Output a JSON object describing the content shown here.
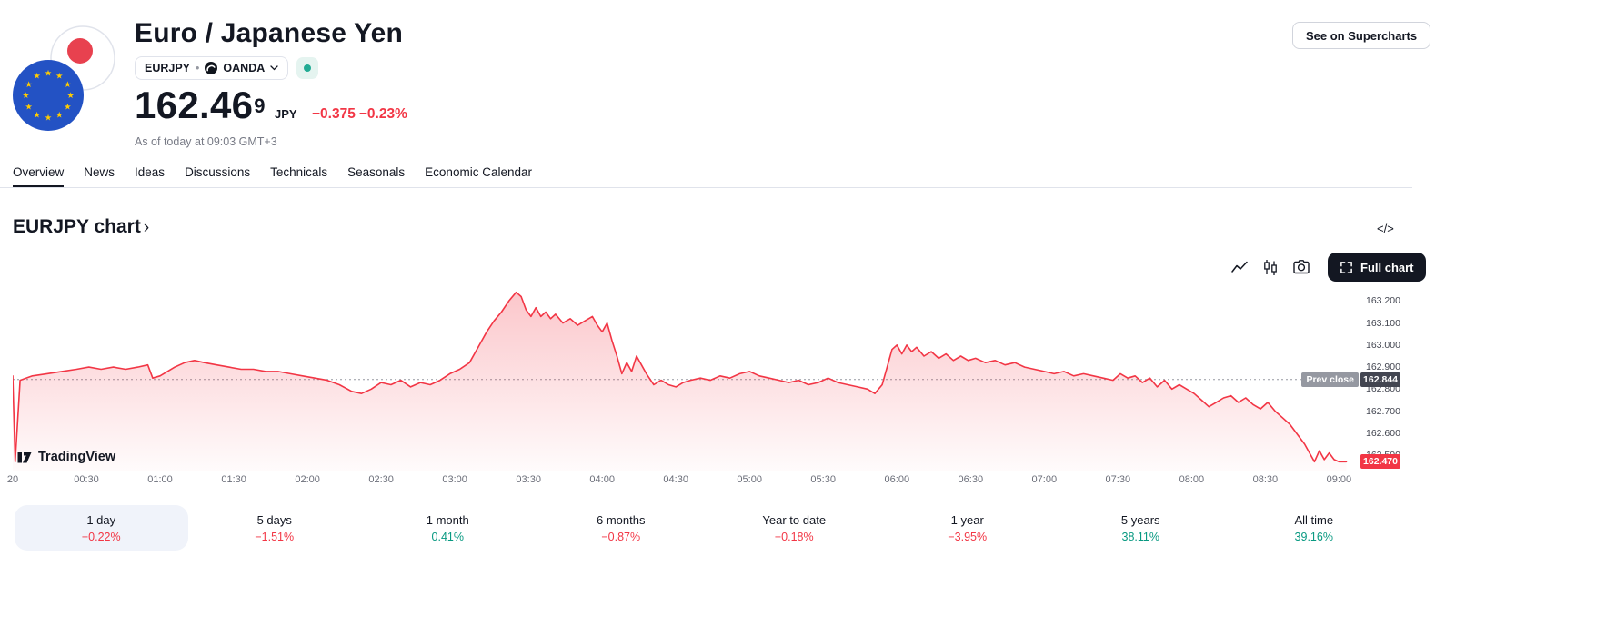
{
  "header": {
    "title": "Euro / Japanese Yen",
    "symbol": "EURJPY",
    "separator": "•",
    "exchange": "OANDA",
    "market_status": "open",
    "price": "162.46",
    "price_sup": "9",
    "currency": "JPY",
    "change_abs": "−0.375",
    "change_pct": "−0.23%",
    "as_of": "As of today at 09:03 GMT+3",
    "supercharts_button": "See on Supercharts"
  },
  "tabs": {
    "items": [
      {
        "label": "Overview",
        "active": true
      },
      {
        "label": "News",
        "active": false
      },
      {
        "label": "Ideas",
        "active": false
      },
      {
        "label": "Discussions",
        "active": false
      },
      {
        "label": "Technicals",
        "active": false
      },
      {
        "label": "Seasonals",
        "active": false
      },
      {
        "label": "Economic Calendar",
        "active": false
      }
    ]
  },
  "section": {
    "title": "EURJPY chart",
    "chevron": "›",
    "code_icon": "</>"
  },
  "toolbar": {
    "full_chart_label": "Full chart"
  },
  "watermark": "TradingView",
  "chart_data": {
    "type": "area",
    "symbol": "EURJPY",
    "x_unit": "minutes since 00:00",
    "xlim": [
      0,
      548
    ],
    "ylim": [
      162.43,
      163.28
    ],
    "grid": false,
    "line_color": "#F23645",
    "prev_close": 162.844,
    "prev_close_label": "Prev close",
    "prev_close_value_label": "162.844",
    "last_price": 162.47,
    "last_price_label": "162.470",
    "y_ticks": [
      "163.200",
      "163.100",
      "163.000",
      "162.900",
      "162.800",
      "162.700",
      "162.600",
      "162.500"
    ],
    "x_ticks": [
      {
        "m": 0,
        "label": "20"
      },
      {
        "m": 30,
        "label": "00:30"
      },
      {
        "m": 60,
        "label": "01:00"
      },
      {
        "m": 90,
        "label": "01:30"
      },
      {
        "m": 120,
        "label": "02:00"
      },
      {
        "m": 150,
        "label": "02:30"
      },
      {
        "m": 180,
        "label": "03:00"
      },
      {
        "m": 210,
        "label": "03:30"
      },
      {
        "m": 240,
        "label": "04:00"
      },
      {
        "m": 270,
        "label": "04:30"
      },
      {
        "m": 300,
        "label": "05:00"
      },
      {
        "m": 330,
        "label": "05:30"
      },
      {
        "m": 360,
        "label": "06:00"
      },
      {
        "m": 390,
        "label": "06:30"
      },
      {
        "m": 420,
        "label": "07:00"
      },
      {
        "m": 450,
        "label": "07:30"
      },
      {
        "m": 480,
        "label": "08:00"
      },
      {
        "m": 510,
        "label": "08:30"
      },
      {
        "m": 540,
        "label": "09:00"
      }
    ],
    "points": [
      [
        0,
        162.86
      ],
      [
        1,
        162.47
      ],
      [
        3,
        162.84
      ],
      [
        8,
        162.86
      ],
      [
        14,
        162.87
      ],
      [
        20,
        162.88
      ],
      [
        26,
        162.89
      ],
      [
        31,
        162.9
      ],
      [
        36,
        162.89
      ],
      [
        41,
        162.9
      ],
      [
        46,
        162.89
      ],
      [
        51,
        162.9
      ],
      [
        55,
        162.91
      ],
      [
        57,
        162.85
      ],
      [
        60,
        162.86
      ],
      [
        63,
        162.88
      ],
      [
        66,
        162.9
      ],
      [
        70,
        162.92
      ],
      [
        74,
        162.93
      ],
      [
        78,
        162.92
      ],
      [
        83,
        162.91
      ],
      [
        88,
        162.9
      ],
      [
        93,
        162.89
      ],
      [
        98,
        162.89
      ],
      [
        103,
        162.88
      ],
      [
        108,
        162.88
      ],
      [
        113,
        162.87
      ],
      [
        118,
        162.86
      ],
      [
        123,
        162.85
      ],
      [
        128,
        162.84
      ],
      [
        133,
        162.82
      ],
      [
        138,
        162.79
      ],
      [
        142,
        162.78
      ],
      [
        146,
        162.8
      ],
      [
        150,
        162.83
      ],
      [
        154,
        162.82
      ],
      [
        158,
        162.84
      ],
      [
        162,
        162.81
      ],
      [
        166,
        162.83
      ],
      [
        170,
        162.82
      ],
      [
        174,
        162.84
      ],
      [
        178,
        162.87
      ],
      [
        182,
        162.89
      ],
      [
        186,
        162.92
      ],
      [
        190,
        163.0
      ],
      [
        193,
        163.06
      ],
      [
        196,
        163.11
      ],
      [
        199,
        163.15
      ],
      [
        202,
        163.2
      ],
      [
        205,
        163.24
      ],
      [
        207,
        163.22
      ],
      [
        209,
        163.16
      ],
      [
        211,
        163.13
      ],
      [
        213,
        163.17
      ],
      [
        215,
        163.13
      ],
      [
        217,
        163.15
      ],
      [
        219,
        163.12
      ],
      [
        221,
        163.14
      ],
      [
        224,
        163.1
      ],
      [
        227,
        163.12
      ],
      [
        230,
        163.09
      ],
      [
        233,
        163.11
      ],
      [
        236,
        163.13
      ],
      [
        238,
        163.09
      ],
      [
        240,
        163.06
      ],
      [
        242,
        163.1
      ],
      [
        244,
        163.02
      ],
      [
        246,
        162.95
      ],
      [
        248,
        162.87
      ],
      [
        250,
        162.92
      ],
      [
        252,
        162.88
      ],
      [
        254,
        162.95
      ],
      [
        256,
        162.91
      ],
      [
        258,
        162.87
      ],
      [
        261,
        162.82
      ],
      [
        264,
        162.84
      ],
      [
        267,
        162.82
      ],
      [
        270,
        162.81
      ],
      [
        273,
        162.83
      ],
      [
        276,
        162.84
      ],
      [
        280,
        162.85
      ],
      [
        284,
        162.84
      ],
      [
        288,
        162.86
      ],
      [
        292,
        162.85
      ],
      [
        296,
        162.87
      ],
      [
        300,
        162.88
      ],
      [
        304,
        162.86
      ],
      [
        308,
        162.85
      ],
      [
        312,
        162.84
      ],
      [
        316,
        162.83
      ],
      [
        320,
        162.84
      ],
      [
        324,
        162.82
      ],
      [
        328,
        162.83
      ],
      [
        332,
        162.85
      ],
      [
        336,
        162.83
      ],
      [
        340,
        162.82
      ],
      [
        344,
        162.81
      ],
      [
        348,
        162.8
      ],
      [
        351,
        162.78
      ],
      [
        354,
        162.82
      ],
      [
        356,
        162.9
      ],
      [
        358,
        162.98
      ],
      [
        360,
        163.0
      ],
      [
        362,
        162.96
      ],
      [
        364,
        163.0
      ],
      [
        366,
        162.97
      ],
      [
        368,
        162.99
      ],
      [
        371,
        162.95
      ],
      [
        374,
        162.97
      ],
      [
        377,
        162.94
      ],
      [
        380,
        162.96
      ],
      [
        383,
        162.93
      ],
      [
        386,
        162.95
      ],
      [
        389,
        162.93
      ],
      [
        392,
        162.94
      ],
      [
        396,
        162.92
      ],
      [
        400,
        162.93
      ],
      [
        404,
        162.91
      ],
      [
        408,
        162.92
      ],
      [
        412,
        162.9
      ],
      [
        416,
        162.89
      ],
      [
        420,
        162.88
      ],
      [
        424,
        162.87
      ],
      [
        428,
        162.88
      ],
      [
        432,
        162.86
      ],
      [
        436,
        162.87
      ],
      [
        440,
        162.86
      ],
      [
        444,
        162.85
      ],
      [
        448,
        162.84
      ],
      [
        451,
        162.87
      ],
      [
        454,
        162.85
      ],
      [
        457,
        162.86
      ],
      [
        460,
        162.83
      ],
      [
        463,
        162.85
      ],
      [
        466,
        162.81
      ],
      [
        469,
        162.84
      ],
      [
        472,
        162.8
      ],
      [
        475,
        162.82
      ],
      [
        478,
        162.8
      ],
      [
        481,
        162.78
      ],
      [
        484,
        162.75
      ],
      [
        487,
        162.72
      ],
      [
        490,
        162.74
      ],
      [
        493,
        162.76
      ],
      [
        496,
        162.77
      ],
      [
        499,
        162.74
      ],
      [
        502,
        162.76
      ],
      [
        505,
        162.73
      ],
      [
        508,
        162.71
      ],
      [
        511,
        162.74
      ],
      [
        514,
        162.7
      ],
      [
        517,
        162.67
      ],
      [
        520,
        162.64
      ],
      [
        522,
        162.61
      ],
      [
        524,
        162.58
      ],
      [
        526,
        162.55
      ],
      [
        528,
        162.51
      ],
      [
        530,
        162.47
      ],
      [
        532,
        162.52
      ],
      [
        534,
        162.48
      ],
      [
        536,
        162.51
      ],
      [
        538,
        162.48
      ],
      [
        540,
        162.47
      ],
      [
        543,
        162.47
      ]
    ]
  },
  "ranges": {
    "items": [
      {
        "label": "1 day",
        "value": "−0.22%",
        "dir": "down",
        "selected": true
      },
      {
        "label": "5 days",
        "value": "−1.51%",
        "dir": "down",
        "selected": false
      },
      {
        "label": "1 month",
        "value": "0.41%",
        "dir": "up",
        "selected": false
      },
      {
        "label": "6 months",
        "value": "−0.87%",
        "dir": "down",
        "selected": false
      },
      {
        "label": "Year to date",
        "value": "−0.18%",
        "dir": "down",
        "selected": false
      },
      {
        "label": "1 year",
        "value": "−3.95%",
        "dir": "down",
        "selected": false
      },
      {
        "label": "5 years",
        "value": "38.11%",
        "dir": "up",
        "selected": false
      },
      {
        "label": "All time",
        "value": "39.16%",
        "dir": "up",
        "selected": false
      }
    ]
  },
  "colors": {
    "up": "#089981",
    "down": "#F23645",
    "accent_red": "#F23645",
    "market_open_green": "#22ab94",
    "prev_close_badge": "#434651",
    "muted_text": "#787b86"
  }
}
